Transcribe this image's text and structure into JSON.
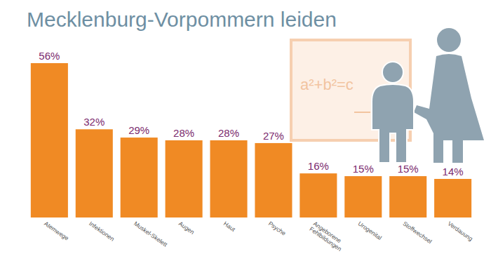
{
  "chart_data": {
    "type": "bar",
    "title": "Mecklenburg-Vorpommern leiden",
    "categories": [
      "Atemwege",
      "Infektionen",
      "Muskel-Skelett",
      "Augen",
      "Haut",
      "Psyche",
      "Angeborene Fehlbildungen",
      "Urogenital",
      "Stoffwechsel",
      "Verdauung"
    ],
    "values": [
      56,
      32,
      29,
      28,
      28,
      27,
      16,
      15,
      15,
      14
    ],
    "value_labels": [
      "56%",
      "32%",
      "29%",
      "28%",
      "28%",
      "27%",
      "16%",
      "15%",
      "15%",
      "14%"
    ],
    "color": "#f08a24",
    "ylim": [
      0,
      56
    ],
    "data_labels": true,
    "tick_labels": "x",
    "grid": false,
    "annotations": [
      "a²+b²=c"
    ]
  }
}
